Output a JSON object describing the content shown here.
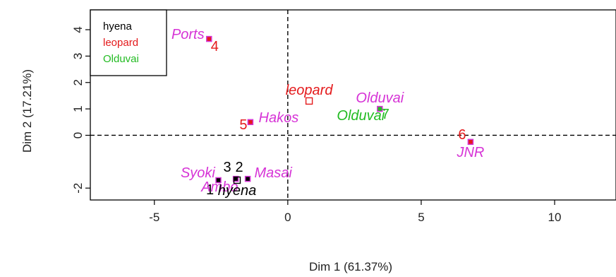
{
  "chart_data": {
    "type": "scatter",
    "xlabel": "Dim 1 (61.37%)",
    "ylabel": "Dim 2 (17.21%)",
    "xlim": [
      -7.4,
      12.3
    ],
    "ylim": [
      -2.45,
      4.75
    ],
    "xticks": [
      -5,
      0,
      5,
      10
    ],
    "yticks": [
      -2,
      0,
      1,
      2,
      3,
      4
    ],
    "reference_lines": {
      "x": 0,
      "y": 0,
      "style": "dashed"
    },
    "legend": {
      "placement": "top-left",
      "entries": [
        {
          "label": "hyena",
          "color": "#000000"
        },
        {
          "label": "leopard",
          "color": "#e41a1c"
        },
        {
          "label": "Olduvai",
          "color": "#22bb22"
        }
      ]
    },
    "individuals": [
      {
        "name": "1",
        "x": -2.6,
        "y": -1.7
      },
      {
        "name": "2",
        "x": -1.5,
        "y": -1.65
      },
      {
        "name": "3",
        "x": -1.95,
        "y": -1.65
      },
      {
        "name": "4",
        "x": -2.95,
        "y": 3.65
      },
      {
        "name": "5",
        "x": -1.4,
        "y": 0.5
      },
      {
        "name": "6",
        "x": 6.85,
        "y": -0.25
      },
      {
        "name": "7",
        "x": 3.45,
        "y": 1.0
      }
    ],
    "category_labels": [
      {
        "text": "Ports",
        "x": -2.95,
        "y": 3.65,
        "color": "#d633d6"
      },
      {
        "text": "Hakos",
        "x": -1.4,
        "y": 0.5,
        "color": "#d633d6"
      },
      {
        "text": "JNR",
        "x": 6.85,
        "y": -0.25,
        "color": "#d633d6"
      },
      {
        "text": "Olduvai",
        "x": 3.45,
        "y": 1.0,
        "color": "#d633d6"
      },
      {
        "text": "Syoki",
        "x": -2.55,
        "y": -1.65,
        "color": "#d633d6"
      },
      {
        "text": "Masai",
        "x": -1.5,
        "y": -1.65,
        "color": "#d633d6"
      },
      {
        "text": "Ambo",
        "x": -2.55,
        "y": -1.7,
        "color": "#d633d6"
      }
    ],
    "supplementary_labels": [
      {
        "text": "leopard",
        "x": 0.8,
        "y": 1.3,
        "color": "#e41a1c"
      },
      {
        "text": "Olduvai",
        "x": 3.45,
        "y": 1.0,
        "color": "#22bb22"
      },
      {
        "text": "hyena",
        "x": -1.9,
        "y": -1.7,
        "color": "#000000"
      }
    ]
  }
}
